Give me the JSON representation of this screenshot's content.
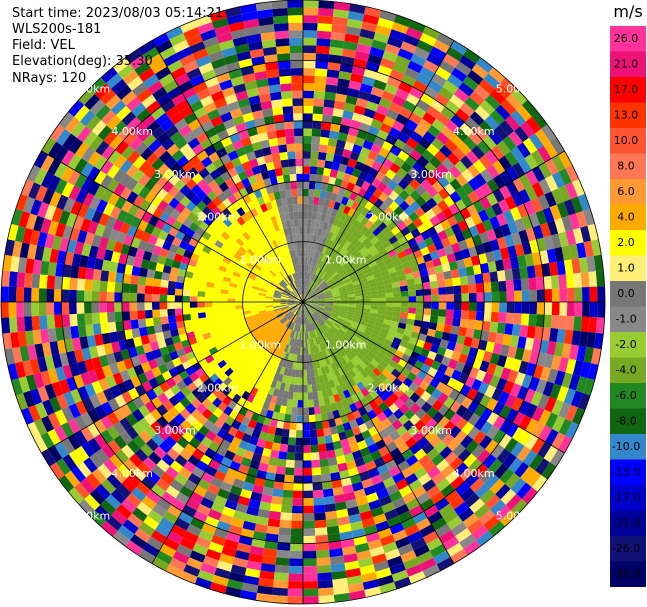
{
  "header": {
    "start_time": "Start time: 2023/08/03 05:14:21",
    "instrument": "WLS200s-181",
    "field": "Field: VEL",
    "elevation": "Elevation(deg): 35.30",
    "nrays": "NRays: 120"
  },
  "colorbar": {
    "unit": "m/s",
    "levels": [
      "26.0",
      "21.0",
      "17.0",
      "13.0",
      "10.0",
      "8.0",
      "6.0",
      "4.0",
      "2.0",
      "1.0",
      "0.0",
      "-1.0",
      "-2.0",
      "-4.0",
      "-6.0",
      "-8.0",
      "-10.0",
      "-13.0",
      "-17.0",
      "-21.0",
      "-26.0",
      "-30.0"
    ],
    "colors": [
      "#ff3399",
      "#ee1177",
      "#ff0000",
      "#ff3300",
      "#ff5533",
      "#ff7755",
      "#ff9933",
      "#ffaa00",
      "#ffff00",
      "#ffee77",
      "#777777",
      "#888888",
      "#99cc33",
      "#77aa22",
      "#228822",
      "#116611",
      "#3388cc",
      "#0000ff",
      "#0000cc",
      "#000099",
      "#111177",
      "#000066"
    ]
  },
  "chart_data": {
    "type": "heatmap",
    "title": "",
    "subtitle": "",
    "projection": "polar PPI",
    "field": "VEL",
    "unit": "m/s",
    "range_rings_km": [
      1.0,
      2.0,
      3.0,
      4.0,
      5.0
    ],
    "range_labels": [
      "1.00km",
      "2.00km",
      "3.00km",
      "4.00km",
      "5.00km"
    ],
    "azimuth_lines_deg": [
      0,
      30,
      60,
      90,
      120,
      150,
      180,
      210,
      240,
      270,
      300,
      330
    ],
    "nrays": 120,
    "max_range_km": 5.0,
    "regions": [
      {
        "name": "noise",
        "range_km": [
          2.0,
          5.0
        ],
        "values": "random -30 to 26"
      },
      {
        "name": "east-north sector",
        "range_km": [
          0.0,
          2.0
        ],
        "value_approx": -6.0
      },
      {
        "name": "west sector",
        "range_km": [
          0.0,
          2.0
        ],
        "value_approx": 2.0
      },
      {
        "name": "south-west core",
        "range_km": [
          0.3,
          1.0
        ],
        "value_approx": 4.0
      },
      {
        "name": "near-zero ring",
        "range_km": [
          0.0,
          0.8
        ],
        "value_approx": 0.0
      }
    ],
    "colorbar_ticks": [
      26.0,
      21.0,
      17.0,
      13.0,
      10.0,
      8.0,
      6.0,
      4.0,
      2.0,
      1.0,
      0.0,
      -1.0,
      -2.0,
      -4.0,
      -6.0,
      -8.0,
      -10.0,
      -13.0,
      -17.0,
      -21.0,
      -26.0,
      -30.0
    ]
  }
}
